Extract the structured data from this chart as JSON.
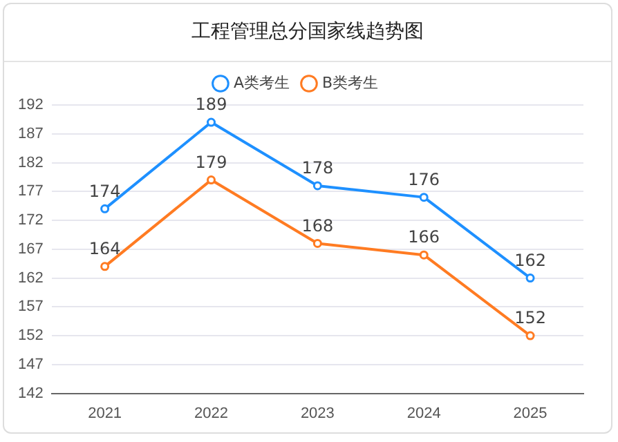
{
  "chart_data": {
    "type": "line",
    "title": "工程管理总分国家线趋势图",
    "categories": [
      "2021",
      "2022",
      "2023",
      "2024",
      "2025"
    ],
    "series": [
      {
        "name": "A类考生",
        "color": "#1e90ff",
        "values": [
          174,
          189,
          178,
          176,
          162
        ]
      },
      {
        "name": "B类考生",
        "color": "#ff7b22",
        "values": [
          164,
          179,
          168,
          166,
          152
        ]
      }
    ],
    "ylim": [
      142,
      192
    ],
    "yticks": [
      142,
      147,
      152,
      157,
      162,
      167,
      172,
      177,
      182,
      187,
      192
    ],
    "grid": "y",
    "legend": "top",
    "marker": "circle",
    "line_style": "solid",
    "data_labels": true
  }
}
